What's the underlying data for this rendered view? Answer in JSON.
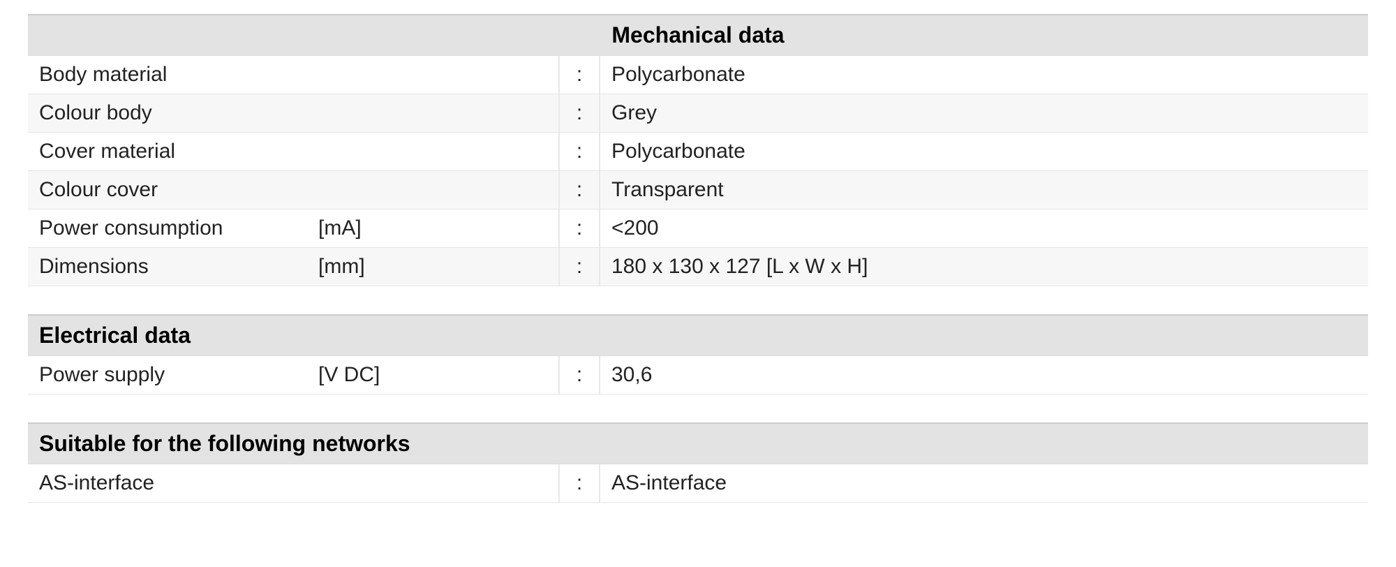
{
  "colors": {
    "header_bg": "#e3e3e3",
    "row_odd_bg": "#ffffff",
    "row_even_bg": "#f7f7f7",
    "border": "#e5e5e5",
    "text": "#222222"
  },
  "typography": {
    "header_fontsize_pt": 24,
    "row_fontsize_pt": 22,
    "font_family": "Arial"
  },
  "sections": {
    "mechanical": {
      "title": "Mechanical data",
      "header_align": "center",
      "rows": [
        {
          "label": "Body material",
          "unit": "",
          "value": "Polycarbonate"
        },
        {
          "label": "Colour body",
          "unit": "",
          "value": "Grey"
        },
        {
          "label": "Cover material",
          "unit": "",
          "value": "Polycarbonate"
        },
        {
          "label": "Colour cover",
          "unit": "",
          "value": "Transparent"
        },
        {
          "label": "Power consumption",
          "unit": "[mA]",
          "value": "<200"
        },
        {
          "label": "Dimensions",
          "unit": "[mm]",
          "value": "180 x 130 x 127  [L x W x H]"
        }
      ]
    },
    "electrical": {
      "title": "Electrical data",
      "header_align": "left",
      "rows": [
        {
          "label": "Power supply",
          "unit": "[V DC]",
          "value": "30,6"
        }
      ]
    },
    "networks": {
      "title": "Suitable for the following networks",
      "header_align": "left",
      "rows": [
        {
          "label": "AS-interface",
          "unit": "",
          "value": "AS-interface"
        }
      ]
    }
  },
  "colon": ":"
}
